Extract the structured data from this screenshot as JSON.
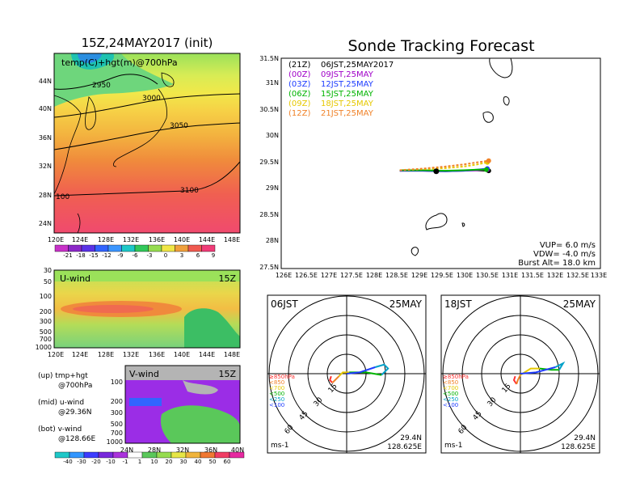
{
  "titles": {
    "init": "15Z,24MAY2017 (init)",
    "main": "Sonde Tracking Forecast"
  },
  "top_map": {
    "label": "temp(C)+hgt(m)@700hPa",
    "lat_ticks": [
      "44N",
      "40N",
      "36N",
      "32N",
      "28N",
      "24N"
    ],
    "lon_ticks": [
      "120E",
      "124E",
      "128E",
      "132E",
      "136E",
      "140E",
      "144E",
      "148E"
    ],
    "contour_labels": [
      "2950",
      "3000",
      "3050",
      "3100",
      "100"
    ],
    "colorbar": [
      "-21",
      "-18",
      "-15",
      "-12",
      "-9",
      "-6",
      "-3",
      "0",
      "3",
      "6",
      "9"
    ]
  },
  "uwind": {
    "label": "U-wind",
    "time": "15Z",
    "p_ticks": [
      "30",
      "50",
      "100",
      "200",
      "300",
      "500",
      "700",
      "1000"
    ],
    "lon_ticks": [
      "120E",
      "124E",
      "128E",
      "132E",
      "136E",
      "140E",
      "144E",
      "148E"
    ]
  },
  "vwind": {
    "label": "V-wind",
    "time": "15Z",
    "p_ticks": [
      "100",
      "200",
      "300",
      "500",
      "700",
      "1000"
    ],
    "lat_ticks": [
      "24N",
      "28N",
      "32N",
      "36N",
      "40N"
    ],
    "colorbar": [
      "-40",
      "-30",
      "-20",
      "-10",
      "-1",
      "1",
      "10",
      "20",
      "30",
      "40",
      "50",
      "60"
    ]
  },
  "legend_left": {
    "up_1": "(up) tmp+hgt",
    "up_2": "@700hPa",
    "mid_1": "(mid) u-wind",
    "mid_2": "@29.36N",
    "bot_1": "(bot) v-wind",
    "bot_2": "@128.66E"
  },
  "tracking": {
    "lat_ticks": [
      "31.5N",
      "31N",
      "30.5N",
      "30N",
      "29.5N",
      "29N",
      "28.5N",
      "28N",
      "27.5N"
    ],
    "lon_ticks": [
      "126E",
      "126.5E",
      "127E",
      "127.5E",
      "128E",
      "128.5E",
      "129E",
      "129.5E",
      "130E",
      "130.5E",
      "131E",
      "131.5E",
      "132E",
      "132.5E",
      "133E"
    ],
    "legend": [
      {
        "code": "(21Z)",
        "time": "06JST,25MAY2017",
        "color": "#000000"
      },
      {
        "code": "(00Z)",
        "time": "09JST,25MAY",
        "color": "#a000c8"
      },
      {
        "code": "(03Z)",
        "time": "12JST,25MAY",
        "color": "#1e3cff"
      },
      {
        "code": "(06Z)",
        "time": "15JST,25MAY",
        "color": "#00b400"
      },
      {
        "code": "(09Z)",
        "time": "18JST,25MAY",
        "color": "#e6c800"
      },
      {
        "code": "(12Z)",
        "time": "21JST,25MAY",
        "color": "#f08228"
      }
    ],
    "params": [
      "VUP= 6.0 m/s",
      "VDW= -4.0 m/s",
      "Burst Alt= 18.0 km"
    ]
  },
  "hodo_left": {
    "time": "06JST",
    "date": "25MAY",
    "rings": [
      "15",
      "30",
      "45",
      "60"
    ],
    "levels": [
      "≥850hPa",
      "<850",
      "<700",
      "<500",
      "<250",
      "<100"
    ],
    "unit": "ms-1",
    "lat": "29.4N",
    "lon": "128.625E"
  },
  "hodo_right": {
    "time": "18JST",
    "date": "25MAY",
    "rings": [
      "15",
      "30",
      "45",
      "60"
    ],
    "levels": [
      "≥850hPa",
      "<850",
      "<700",
      "<500",
      "<250",
      "<100"
    ],
    "unit": "ms-1",
    "lat": "29.4N",
    "lon": "128.625E"
  },
  "chart_data": [
    {
      "type": "line",
      "title": "Sonde Tracking Forecast",
      "xlim": [
        126,
        133
      ],
      "ylim": [
        27.5,
        31.5
      ],
      "series": [
        {
          "name": "(21Z) 06JST,25MAY2017",
          "color": "#000000",
          "x": [
            128.6,
            129.0,
            129.4,
            129.8,
            130.2,
            130.55
          ],
          "y": [
            29.36,
            29.37,
            29.35,
            29.36,
            29.37,
            29.36
          ]
        },
        {
          "name": "(00Z) 09JST,25MAY",
          "color": "#a000c8",
          "x": [
            128.6,
            129.1,
            129.6,
            130.0,
            130.3,
            130.52
          ],
          "y": [
            29.36,
            29.36,
            29.35,
            29.36,
            29.37,
            29.38
          ]
        },
        {
          "name": "(03Z) 12JST,25MAY",
          "color": "#1e3cff",
          "x": [
            128.6,
            129.1,
            129.6,
            130.0,
            130.3,
            130.52
          ],
          "y": [
            29.36,
            29.36,
            29.35,
            29.36,
            29.38,
            29.4
          ]
        },
        {
          "name": "(06Z) 15JST,25MAY",
          "color": "#00b400",
          "x": [
            128.6,
            129.1,
            129.6,
            130.0,
            130.3,
            130.5
          ],
          "y": [
            29.37,
            29.37,
            29.36,
            29.37,
            29.38,
            29.38
          ]
        },
        {
          "name": "(09Z) 18JST,25MAY",
          "color": "#e6c800",
          "x": [
            128.6,
            129.1,
            129.6,
            130.0,
            130.3,
            130.52
          ],
          "y": [
            29.37,
            29.39,
            29.41,
            29.44,
            29.48,
            29.52
          ]
        },
        {
          "name": "(12Z) 21JST,25MAY",
          "color": "#f08228",
          "x": [
            128.6,
            129.1,
            129.6,
            130.0,
            130.3,
            130.55
          ],
          "y": [
            29.37,
            29.4,
            29.44,
            29.48,
            29.52,
            29.55
          ]
        }
      ],
      "params": {
        "VUP": 6.0,
        "VDW": -4.0,
        "burst_alt_km": 18.0
      }
    },
    {
      "type": "line",
      "title": "06JST 25MAY hodograph",
      "unit": "ms-1",
      "ring_labels": [
        15,
        30,
        45,
        60
      ],
      "series": [
        {
          "name": "≥850hPa",
          "color": "#ff3030",
          "u": [
            -12,
            -13,
            -11
          ],
          "v": [
            -2,
            -5,
            -7
          ]
        },
        {
          "name": "<850",
          "color": "#f08228",
          "u": [
            -11,
            -9,
            -6
          ],
          "v": [
            -7,
            -5,
            -2
          ]
        },
        {
          "name": "<700",
          "color": "#e6c800",
          "u": [
            -6,
            -3,
            2
          ],
          "v": [
            -2,
            1,
            1
          ]
        },
        {
          "name": "<500",
          "color": "#00b400",
          "u": [
            2,
            15,
            27
          ],
          "v": [
            1,
            1,
            -1
          ]
        },
        {
          "name": "<250",
          "color": "#00a0c8",
          "u": [
            27,
            32,
            29,
            22
          ],
          "v": [
            -1,
            4,
            7,
            5
          ]
        },
        {
          "name": "<100",
          "color": "#1e3cff",
          "u": [
            22,
            10,
            0
          ],
          "v": [
            5,
            1,
            0
          ]
        }
      ]
    },
    {
      "type": "line",
      "title": "18JST 25MAY hodograph",
      "unit": "ms-1",
      "ring_labels": [
        15,
        30,
        45,
        60
      ],
      "series": [
        {
          "name": "≥850hPa",
          "color": "#ff3030",
          "u": [
            -4,
            -5,
            -3
          ],
          "v": [
            -2,
            -5,
            -8
          ]
        },
        {
          "name": "<850",
          "color": "#f08228",
          "u": [
            -3,
            -2,
            0
          ],
          "v": [
            -8,
            -5,
            -1
          ]
        },
        {
          "name": "<700",
          "color": "#e6c800",
          "u": [
            0,
            8,
            15
          ],
          "v": [
            -1,
            4,
            4
          ]
        },
        {
          "name": "<500",
          "color": "#00b400",
          "u": [
            15,
            24,
            30
          ],
          "v": [
            4,
            3,
            3
          ]
        },
        {
          "name": "<250",
          "color": "#00a0c8",
          "u": [
            30,
            33,
            27
          ],
          "v": [
            3,
            8,
            5
          ]
        },
        {
          "name": "<100",
          "color": "#1e3cff",
          "u": [
            27,
            12,
            0
          ],
          "v": [
            5,
            1,
            0
          ]
        }
      ]
    }
  ]
}
